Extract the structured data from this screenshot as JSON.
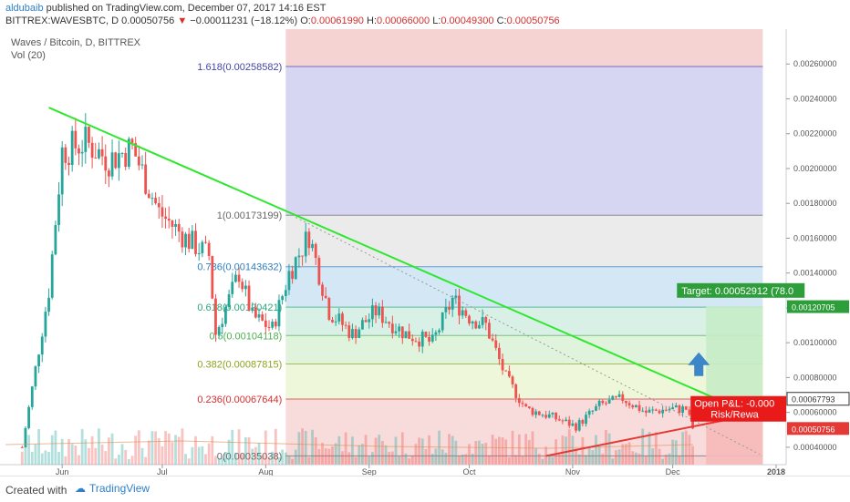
{
  "header": {
    "author": "aldubaib",
    "published": "published on TradingView.com, December 07, 2017 14:16 EST",
    "symbol_line": "BITTREX:WAVESBTC, D",
    "last": "0.00050756",
    "change_arrow": "▼",
    "change": "−0.00011231 (−18.12%)",
    "o_label": "O:",
    "o_value": "0.00061990",
    "h_label": "H:",
    "h_value": "0.00066000",
    "l_label": "L:",
    "l_value": "0.00049300",
    "c_label": "C:",
    "c_value": "0.00050756"
  },
  "footer": {
    "created_with": "Created with",
    "brand": "TradingView"
  },
  "colors": {
    "up": "#26a69a",
    "down": "#ef5350",
    "trend_green": "#2ee82e",
    "trend_red": "#e53935",
    "fib_1618": "#d6d6f2",
    "fib_1": "#ebebeb",
    "fib_786": "#d3e7f5",
    "fib_618": "#d8f0e6",
    "fib_5": "#e0f3dc",
    "fib_382": "#eef7d9",
    "fib_236": "#f8dcdc",
    "fib_0": "#fbe3e3",
    "target_green": "#2e9e3a",
    "pnl_red": "#e81a1a",
    "arrow_blue": "#3d86c8"
  },
  "chart_data": {
    "type": "candlestick",
    "title": "Waves / Bitcoin, D, BITTREX",
    "indicator": "Vol (20)",
    "ylim": [
      0.0003,
      0.0028
    ],
    "y_ticks": [
      "0.00260000",
      "0.00240000",
      "0.00220000",
      "0.00200000",
      "0.00180000",
      "0.00160000",
      "0.00140000",
      "0.00120000",
      "0.00100000",
      "0.00080000",
      "0.00060000",
      "0.00040000"
    ],
    "x_ticks": [
      "Jun",
      "Jul",
      "Aug",
      "Sep",
      "Oct",
      "Nov",
      "Dec",
      "2018"
    ],
    "fib_levels": [
      {
        "label": "1.618(0.00258582)",
        "value": 0.00258582,
        "color": "#4444aa"
      },
      {
        "label": "1(0.00173199)",
        "value": 0.00173199,
        "color": "#666666"
      },
      {
        "label": "0.786(0.00143632)",
        "value": 0.00143632,
        "color": "#2d7fc1"
      },
      {
        "label": "0.618(0.00120421)",
        "value": 0.00120421,
        "color": "#2aa67a"
      },
      {
        "label": "0.5(0.00104118)",
        "value": 0.00104118,
        "color": "#4caf50"
      },
      {
        "label": "0.382(0.00087815)",
        "value": 0.00087815,
        "color": "#8aa51e"
      },
      {
        "label": "0.236(0.00067644)",
        "value": 0.00067644,
        "color": "#d32f2f"
      },
      {
        "label": "0(0.00035038)",
        "value": 0.00035038,
        "color": "#666666"
      }
    ],
    "price_labels": [
      {
        "text": "0.00120705",
        "value": 0.00120705,
        "color": "#2e9e3a"
      },
      {
        "text": "0.00067793",
        "value": 0.00067793,
        "color": "#333333"
      },
      {
        "text": "0.00050756",
        "value": 0.00050756,
        "color": "#e53935"
      }
    ],
    "target_label": "Target: 0.00052912 (78.0",
    "pnl_label": "Open P&L: -0.000",
    "risk_label": "Risk/Rewa",
    "trend_lines": [
      {
        "color": "green",
        "from": [
          "2017-05-28",
          0.00235
        ],
        "to": [
          "2017-12-27",
          0.00057
        ]
      },
      {
        "color": "red",
        "from": [
          "2017-10-24",
          0.00035
        ],
        "to": [
          "2017-12-23",
          0.00058
        ]
      }
    ],
    "candle_anchors": [
      [
        "2017-05-20",
        0.0004
      ],
      [
        "2017-05-28",
        0.0013
      ],
      [
        "2017-06-01",
        0.0021
      ],
      [
        "2017-06-08",
        0.00215
      ],
      [
        "2017-06-15",
        0.00205
      ],
      [
        "2017-06-22",
        0.00212
      ],
      [
        "2017-06-30",
        0.00175
      ],
      [
        "2017-07-08",
        0.0016
      ],
      [
        "2017-07-15",
        0.0015
      ],
      [
        "2017-07-17",
        0.00105
      ],
      [
        "2017-07-24",
        0.0014
      ],
      [
        "2017-07-28",
        0.00115
      ],
      [
        "2017-08-03",
        0.00108
      ],
      [
        "2017-08-08",
        0.0014
      ],
      [
        "2017-08-14",
        0.00162
      ],
      [
        "2017-08-20",
        0.00118
      ],
      [
        "2017-08-27",
        0.00105
      ],
      [
        "2017-09-03",
        0.00118
      ],
      [
        "2017-09-12",
        0.00105
      ],
      [
        "2017-09-20",
        0.001
      ],
      [
        "2017-09-26",
        0.00125
      ],
      [
        "2017-10-01",
        0.00115
      ],
      [
        "2017-10-06",
        0.0011
      ],
      [
        "2017-10-12",
        0.0008
      ],
      [
        "2017-10-18",
        0.00062
      ],
      [
        "2017-10-25",
        0.00058
      ],
      [
        "2017-11-02",
        0.00052
      ],
      [
        "2017-11-09",
        0.00064
      ],
      [
        "2017-11-16",
        0.00068
      ],
      [
        "2017-11-23",
        0.0006
      ],
      [
        "2017-11-30",
        0.00062
      ],
      [
        "2017-12-05",
        0.00062
      ],
      [
        "2017-12-07",
        0.00051
      ]
    ]
  }
}
